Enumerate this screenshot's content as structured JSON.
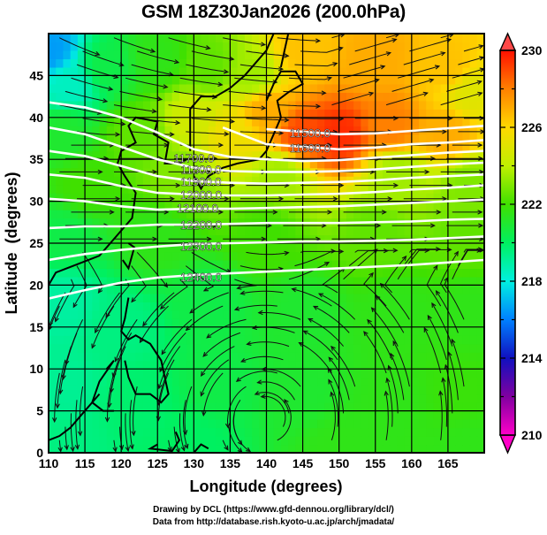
{
  "chart_data": {
    "type": "heatmap",
    "title": "GSM 18Z30Jan2026 (200.0hPa)",
    "xlabel": "Longitude (degrees)",
    "ylabel": "Latitude  (degrees)",
    "xlim": [
      110,
      170
    ],
    "ylim": [
      0,
      50
    ],
    "grid": true,
    "xticks": [
      "110",
      "115",
      "120",
      "125",
      "130",
      "135",
      "140",
      "145",
      "150",
      "155",
      "160",
      "165"
    ],
    "yticks": [
      "0",
      "5",
      "10",
      "15",
      "20",
      "25",
      "30",
      "35",
      "40",
      "45"
    ],
    "colorbar": {
      "range": [
        210,
        230
      ],
      "ticks": [
        "210",
        "214",
        "218",
        "222",
        "226",
        "230"
      ],
      "placement": "right",
      "colors": [
        "#ff00c8",
        "#8000a0",
        "#1010c0",
        "#0080ff",
        "#00f0e0",
        "#00f060",
        "#40e000",
        "#c0f000",
        "#ffd800",
        "#ff8000",
        "#ff1000"
      ]
    },
    "contour_labels": [
      {
        "label": "11500.0",
        "lon": 146,
        "lat": 38.2
      },
      {
        "label": "11600.0",
        "lon": 146,
        "lat": 36.4
      },
      {
        "label": "11700.0",
        "lon": 130,
        "lat": 35.2
      },
      {
        "label": "11800.0",
        "lon": 131,
        "lat": 33.8
      },
      {
        "label": "11900.0",
        "lon": 131,
        "lat": 32.4
      },
      {
        "label": "12000.0",
        "lon": 131,
        "lat": 30.8
      },
      {
        "label": "12100.0",
        "lon": 130.5,
        "lat": 29.2
      },
      {
        "label": "12200.0",
        "lon": 131,
        "lat": 27.2
      },
      {
        "label": "12300.0",
        "lon": 131,
        "lat": 24.7
      },
      {
        "label": "12400.0",
        "lon": 131,
        "lat": 21.0
      }
    ],
    "contours": [
      {
        "value": 11500,
        "points": [
          [
            140,
            38.6
          ],
          [
            145,
            38.3
          ],
          [
            150,
            38.0
          ],
          [
            155,
            38.1
          ],
          [
            160,
            38.4
          ],
          [
            165,
            38.7
          ],
          [
            170,
            39.0
          ]
        ]
      },
      {
        "value": 11600,
        "points": [
          [
            134,
            38.8
          ],
          [
            140,
            36.8
          ],
          [
            145,
            36.5
          ],
          [
            150,
            36.2
          ],
          [
            155,
            36.4
          ],
          [
            160,
            36.8
          ],
          [
            165,
            37.0
          ],
          [
            170,
            37.3
          ]
        ]
      },
      {
        "value": 11700,
        "points": [
          [
            110,
            41.8
          ],
          [
            115,
            41.2
          ],
          [
            120,
            40.0
          ],
          [
            125,
            38.2
          ],
          [
            130,
            36.2
          ],
          [
            135,
            35.3
          ],
          [
            140,
            35.0
          ],
          [
            145,
            34.8
          ],
          [
            150,
            34.9
          ],
          [
            155,
            35.2
          ],
          [
            160,
            35.5
          ],
          [
            165,
            35.8
          ],
          [
            170,
            36.0
          ]
        ]
      },
      {
        "value": 11800,
        "points": [
          [
            110,
            38.8
          ],
          [
            115,
            38.0
          ],
          [
            120,
            36.5
          ],
          [
            125,
            35.0
          ],
          [
            130,
            34.0
          ],
          [
            135,
            33.6
          ],
          [
            140,
            33.5
          ],
          [
            145,
            33.5
          ],
          [
            150,
            33.6
          ],
          [
            155,
            33.8
          ],
          [
            160,
            34.1
          ],
          [
            165,
            34.4
          ],
          [
            170,
            34.6
          ]
        ]
      },
      {
        "value": 11900,
        "points": [
          [
            110,
            36.0
          ],
          [
            115,
            35.4
          ],
          [
            120,
            34.2
          ],
          [
            125,
            33.0
          ],
          [
            130,
            32.4
          ],
          [
            135,
            32.2
          ],
          [
            140,
            32.1
          ],
          [
            145,
            32.2
          ],
          [
            150,
            32.3
          ],
          [
            155,
            32.5
          ],
          [
            160,
            32.8
          ],
          [
            165,
            33.0
          ],
          [
            170,
            33.2
          ]
        ]
      },
      {
        "value": 12000,
        "points": [
          [
            110,
            33.2
          ],
          [
            115,
            32.8
          ],
          [
            120,
            31.8
          ],
          [
            125,
            31.0
          ],
          [
            130,
            30.8
          ],
          [
            135,
            30.7
          ],
          [
            140,
            30.7
          ],
          [
            145,
            30.8
          ],
          [
            150,
            30.9
          ],
          [
            155,
            31.1
          ],
          [
            160,
            31.4
          ],
          [
            165,
            31.6
          ],
          [
            170,
            31.9
          ]
        ]
      },
      {
        "value": 12100,
        "points": [
          [
            110,
            30.3
          ],
          [
            115,
            30.0
          ],
          [
            120,
            29.4
          ],
          [
            125,
            29.0
          ],
          [
            130,
            29.1
          ],
          [
            135,
            29.1
          ],
          [
            140,
            29.2
          ],
          [
            145,
            29.3
          ],
          [
            150,
            29.4
          ],
          [
            155,
            29.6
          ],
          [
            160,
            29.8
          ],
          [
            165,
            30.0
          ],
          [
            170,
            30.2
          ]
        ]
      },
      {
        "value": 12200,
        "points": [
          [
            110,
            26.8
          ],
          [
            115,
            27.0
          ],
          [
            120,
            27.0
          ],
          [
            125,
            27.2
          ],
          [
            130,
            27.2
          ],
          [
            135,
            27.3
          ],
          [
            140,
            27.4
          ],
          [
            145,
            27.4
          ],
          [
            150,
            27.4
          ],
          [
            155,
            27.5
          ],
          [
            160,
            27.6
          ],
          [
            165,
            27.8
          ],
          [
            170,
            27.9
          ]
        ]
      },
      {
        "value": 12300,
        "points": [
          [
            110,
            23.0
          ],
          [
            115,
            23.7
          ],
          [
            120,
            24.2
          ],
          [
            125,
            24.6
          ],
          [
            130,
            24.9
          ],
          [
            135,
            25.0
          ],
          [
            140,
            25.1
          ],
          [
            145,
            25.2
          ],
          [
            150,
            25.2
          ],
          [
            155,
            25.3
          ],
          [
            160,
            25.4
          ],
          [
            165,
            25.6
          ],
          [
            170,
            25.8
          ]
        ]
      },
      {
        "value": 12400,
        "points": [
          [
            110,
            18.4
          ],
          [
            115,
            19.4
          ],
          [
            120,
            20.3
          ],
          [
            125,
            20.9
          ],
          [
            130,
            21.2
          ],
          [
            135,
            21.4
          ],
          [
            140,
            21.6
          ],
          [
            145,
            21.8
          ],
          [
            150,
            22.0
          ],
          [
            155,
            22.2
          ],
          [
            160,
            22.4
          ],
          [
            165,
            22.7
          ],
          [
            170,
            23.0
          ]
        ]
      }
    ],
    "temperature_field": [
      {
        "lon": 110,
        "lat": 48,
        "t": 216.5
      },
      {
        "lon": 113,
        "lat": 44,
        "t": 218.5
      },
      {
        "lon": 118,
        "lat": 46,
        "t": 220.5
      },
      {
        "lon": 125,
        "lat": 47,
        "t": 221.5
      },
      {
        "lon": 132,
        "lat": 46,
        "t": 222.5
      },
      {
        "lon": 138,
        "lat": 45,
        "t": 223.5
      },
      {
        "lon": 145,
        "lat": 48,
        "t": 226.5
      },
      {
        "lon": 155,
        "lat": 47,
        "t": 227.0
      },
      {
        "lon": 165,
        "lat": 46,
        "t": 226.5
      },
      {
        "lon": 168,
        "lat": 43,
        "t": 225.0
      },
      {
        "lon": 140,
        "lat": 41,
        "t": 227.0
      },
      {
        "lon": 150,
        "lat": 38,
        "t": 229.5
      },
      {
        "lon": 145,
        "lat": 38,
        "t": 229.0
      },
      {
        "lon": 157,
        "lat": 39,
        "t": 228.0
      },
      {
        "lon": 165,
        "lat": 38,
        "t": 227.0
      },
      {
        "lon": 135,
        "lat": 38,
        "t": 225.5
      },
      {
        "lon": 130,
        "lat": 40,
        "t": 224.5
      },
      {
        "lon": 122,
        "lat": 38,
        "t": 222.5
      },
      {
        "lon": 112,
        "lat": 38,
        "t": 221.0
      },
      {
        "lon": 115,
        "lat": 32,
        "t": 222.0
      },
      {
        "lon": 128,
        "lat": 33,
        "t": 223.0
      },
      {
        "lon": 142,
        "lat": 33,
        "t": 223.5
      },
      {
        "lon": 158,
        "lat": 33,
        "t": 223.5
      },
      {
        "lon": 168,
        "lat": 32,
        "t": 223.0
      },
      {
        "lon": 112,
        "lat": 26,
        "t": 220.5
      },
      {
        "lon": 125,
        "lat": 26,
        "t": 221.5
      },
      {
        "lon": 140,
        "lat": 26,
        "t": 222.0
      },
      {
        "lon": 155,
        "lat": 26,
        "t": 222.5
      },
      {
        "lon": 168,
        "lat": 26,
        "t": 222.5
      },
      {
        "lon": 112,
        "lat": 18,
        "t": 219.0
      },
      {
        "lon": 120,
        "lat": 15,
        "t": 219.5
      },
      {
        "lon": 132,
        "lat": 18,
        "t": 220.5
      },
      {
        "lon": 145,
        "lat": 17,
        "t": 221.0
      },
      {
        "lon": 158,
        "lat": 17,
        "t": 221.5
      },
      {
        "lon": 168,
        "lat": 17,
        "t": 221.5
      },
      {
        "lon": 112,
        "lat": 8,
        "t": 219.2
      },
      {
        "lon": 122,
        "lat": 6,
        "t": 219.8
      },
      {
        "lon": 133,
        "lat": 8,
        "t": 220.5
      },
      {
        "lon": 145,
        "lat": 7,
        "t": 221.0
      },
      {
        "lon": 157,
        "lat": 6,
        "t": 221.5
      },
      {
        "lon": 167,
        "lat": 7,
        "t": 221.8
      },
      {
        "lon": 112,
        "lat": 1,
        "t": 219.5
      },
      {
        "lon": 130,
        "lat": 1,
        "t": 220.0
      },
      {
        "lon": 150,
        "lat": 1,
        "t": 221.5
      },
      {
        "lon": 168,
        "lat": 1,
        "t": 221.5
      }
    ],
    "wind_streamlines": {
      "style": "arrowed streamlines",
      "regions": [
        {
          "name": "westerly-jet",
          "lat_range": [
            24,
            50
          ],
          "direction": "eastward"
        },
        {
          "name": "tropical-easterlies",
          "lat_range": [
            0,
            20
          ],
          "direction": "westward, anticyclonic turning"
        }
      ]
    }
  },
  "credits": {
    "line1": "Drawing by DCL (https://www.gfd-dennou.org/library/dcl/)",
    "line2": "Data from http://database.rish.kyoto-u.ac.jp/arch/jmadata/"
  }
}
